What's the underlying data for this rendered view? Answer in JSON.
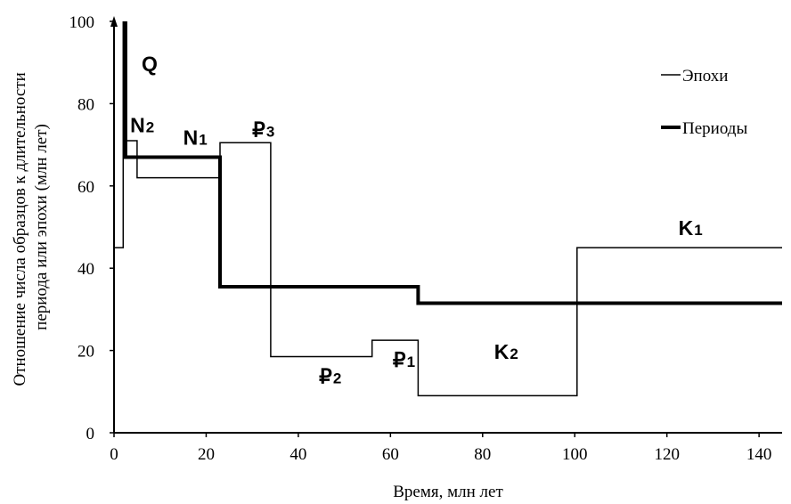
{
  "chart_data": {
    "type": "line",
    "title": "",
    "xlabel": "Время, млн лет",
    "ylabel_lines": [
      "Отношение числа образцов к длительности",
      "периода или эпохи (млн лет)"
    ],
    "xlim": [
      0,
      145
    ],
    "ylim": [
      0,
      100
    ],
    "x_ticks": [
      "0",
      "20",
      "40",
      "60",
      "80",
      "100",
      "120",
      "140"
    ],
    "y_ticks": [
      "0",
      "20",
      "40",
      "60",
      "80",
      "100"
    ],
    "grid": false,
    "legend_position": "top-right",
    "series": [
      {
        "name": "Эпохи",
        "line_style": "thin",
        "color": "#000000",
        "points": [
          [
            0,
            45
          ],
          [
            2,
            45
          ],
          [
            2,
            100
          ],
          [
            2,
            71
          ],
          [
            5,
            71
          ],
          [
            5,
            62
          ],
          [
            23,
            62
          ],
          [
            23,
            70.5
          ],
          [
            34,
            70.5
          ],
          [
            34,
            18.5
          ],
          [
            56,
            18.5
          ],
          [
            56,
            22.5
          ],
          [
            66,
            22.5
          ],
          [
            66,
            9
          ],
          [
            100.5,
            9
          ],
          [
            100.5,
            45
          ],
          [
            145,
            45
          ]
        ]
      },
      {
        "name": "Периоды",
        "line_style": "thick",
        "color": "#000000",
        "points": [
          [
            2.5,
            100
          ],
          [
            2.5,
            67
          ],
          [
            23,
            67
          ],
          [
            23,
            35.5
          ],
          [
            66,
            35.5
          ],
          [
            66,
            31.5
          ],
          [
            145,
            31.5
          ]
        ]
      }
    ],
    "annotations": [
      {
        "main": "Q",
        "sub": "",
        "x": 6,
        "y": 88
      },
      {
        "main": "N",
        "sub": "2",
        "x": 3.5,
        "y": 73
      },
      {
        "main": "N",
        "sub": "1",
        "x": 15,
        "y": 70
      },
      {
        "main": "₽",
        "sub": "3",
        "x": 30,
        "y": 72
      },
      {
        "main": "₽",
        "sub": "2",
        "x": 44.5,
        "y": 12
      },
      {
        "main": "₽",
        "sub": "1",
        "x": 60.5,
        "y": 16
      },
      {
        "main": "K",
        "sub": "2",
        "x": 82.5,
        "y": 18
      },
      {
        "main": "K",
        "sub": "1",
        "x": 122.5,
        "y": 48
      }
    ]
  }
}
